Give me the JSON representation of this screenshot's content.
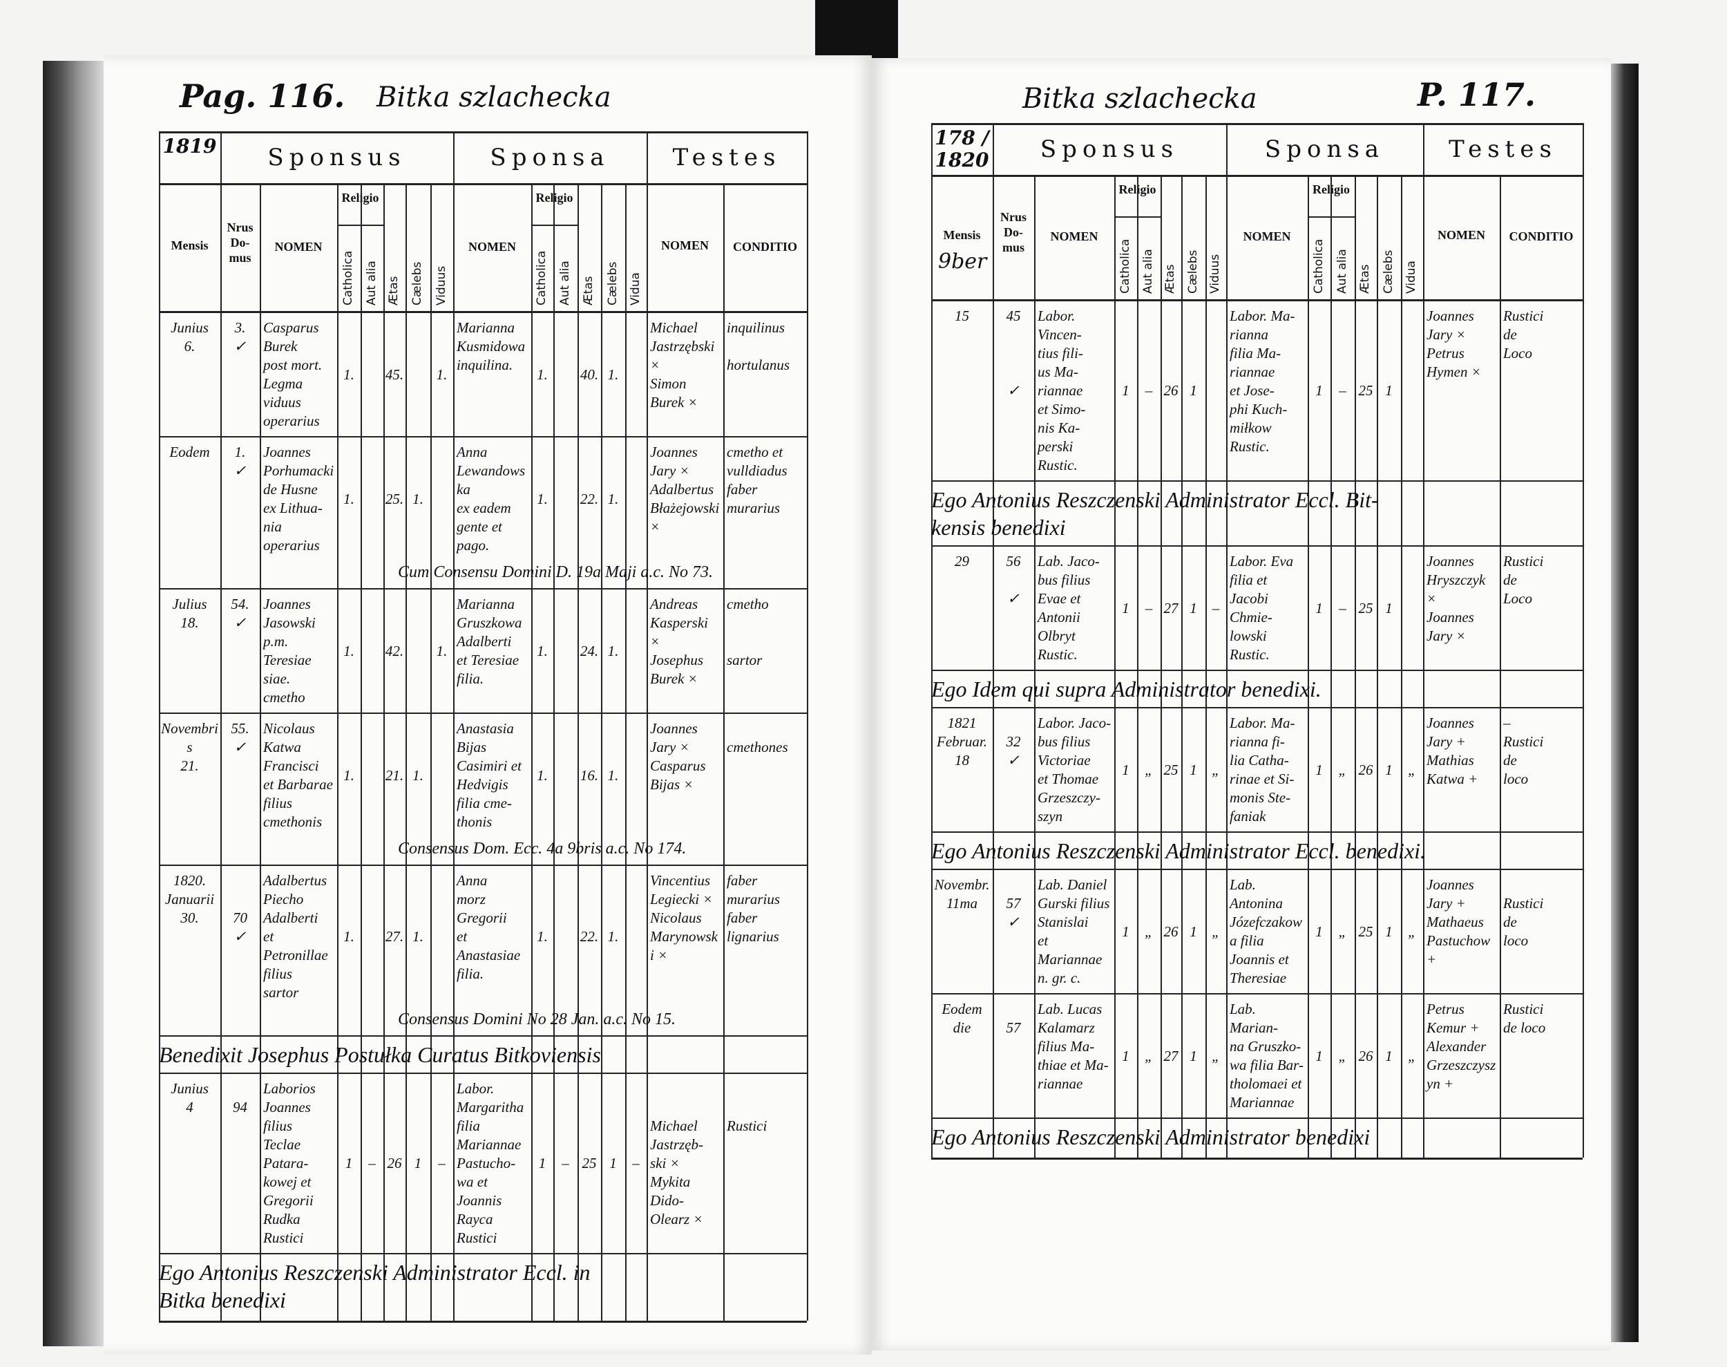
{
  "pages": [
    {
      "id": "left",
      "page_label": "Pag. 116.",
      "parish_title": "Bitka szlachecka",
      "year": "1819",
      "headers": {
        "year_cell": "1819",
        "sponsus": "Sponsus",
        "sponsa": "Sponsa",
        "testes": "Testes",
        "mensis": "Mensis",
        "nrus_domus": "Nrus\nDo-\nmus",
        "nomen": "NOMEN",
        "religio": "Religio",
        "catholica": "Catholica",
        "aut_alia": "Aut alia",
        "aetas": "Ætas",
        "caelebs": "Cælebs",
        "viduus": "Viduus",
        "vidua": "Vidua",
        "conditio": "CONDITIO",
        "mensis_value": ""
      },
      "items": [
        {
          "type": "entry",
          "mensis": "Junius\n6.",
          "domus": "3.\n✓",
          "sponsus": {
            "nomen": "Casparus\nBurek\npost mort.\nLegma\nviduus operarius",
            "cols": [
              "1.",
              "",
              "45.",
              "",
              "1."
            ]
          },
          "sponsa": {
            "nomen": "Marianna\nKusmidowa\ninquilina.",
            "cols": [
              "1.",
              "",
              "40.",
              "1.",
              ""
            ]
          },
          "testes": "Michael\nJastrzębski ×\nSimon\nBurek ×",
          "conditio": "inquilinus\n\nhortulanus",
          "note": ""
        },
        {
          "type": "entry",
          "mensis": "Eodem",
          "domus": "1.\n✓",
          "sponsus": {
            "nomen": "Joannes\nPorhumacki\nde Husne\nex Lithua-\nnia\noperarius",
            "cols": [
              "1.",
              "",
              "25.",
              "1.",
              ""
            ]
          },
          "sponsa": {
            "nomen": "Anna\nLewandowska\nex eadem\ngente et\npago.",
            "cols": [
              "1.",
              "",
              "22.",
              "1.",
              ""
            ]
          },
          "testes": "Joannes\nJary ×\nAdalbertus\nBłażejowski ×",
          "conditio": "cmetho et\nvulldiadus\nfaber\nmurarius",
          "note": "Cum Consensu Domini D. 19a Maji a.c. No 73."
        },
        {
          "type": "entry",
          "mensis": "Julius\n18.",
          "domus": "54.\n✓",
          "sponsus": {
            "nomen": "Joannes\nJasowski\np.m. Teresiae\nsiae.\ncmetho",
            "cols": [
              "1.",
              "",
              "42.",
              "",
              "1."
            ]
          },
          "sponsa": {
            "nomen": "Marianna\nGruszkowa\nAdalberti\net Teresiae\nfilia.",
            "cols": [
              "1.",
              "",
              "24.",
              "1.",
              ""
            ]
          },
          "testes": "Andreas\nKasperski ×\nJosephus\nBurek ×",
          "conditio": "cmetho\n\n\nsartor",
          "note": ""
        },
        {
          "type": "entry",
          "mensis": "Novembris\n21.",
          "domus": "55.\n✓",
          "sponsus": {
            "nomen": "Nicolaus\nKatwa\nFrancisci\net Barbarae\nfilius\ncmethonis",
            "cols": [
              "1.",
              "",
              "21.",
              "1.",
              ""
            ]
          },
          "sponsa": {
            "nomen": "Anastasia\nBijas\nCasimiri et\nHedvigis\nfilia cme-\nthonis",
            "cols": [
              "1.",
              "",
              "16.",
              "1.",
              ""
            ]
          },
          "testes": "Joannes\nJary ×\nCasparus\nBijas ×",
          "conditio": "\ncmethones",
          "note": "Consensus Dom. Ecc. 4a 9bris a.c. No 174."
        },
        {
          "type": "entry",
          "mensis": "1820.\nJanuarii\n30.",
          "domus": "\n\n70\n✓",
          "sponsus": {
            "nomen": "Adalbertus\nPiecho\nAdalberti\net Petronillae\nfilius\nsartor",
            "cols": [
              "1.",
              "",
              "27.",
              "1.",
              ""
            ]
          },
          "sponsa": {
            "nomen": "Anna\nmorz\nGregorii\net Anastasiae\nfilia.",
            "cols": [
              "1.",
              "",
              "22.",
              "1.",
              ""
            ]
          },
          "testes": "Vincentius\nLegiecki ×\nNicolaus\nMarynowski ×",
          "conditio": "faber\nmurarius\nfaber\nlignarius",
          "note": "Consensus Domini No 28 Jan. a.c. No 15."
        },
        {
          "type": "closing",
          "text": "Benedixit Josephus Postułka Curatus Bitkoviensis"
        },
        {
          "type": "entry",
          "mensis": "Junius\n4",
          "domus": "\n94",
          "sponsus": {
            "nomen": "Laborios\nJoannes\nfilius\nTeclae\nPatara-\nkowej et\nGregorii\nRudka\nRustici",
            "cols": [
              "1",
              "–",
              "26",
              "1",
              "–"
            ]
          },
          "sponsa": {
            "nomen": "Labor.\nMargaritha\nfilia\nMariannae\nPastucho-\nwa et\nJoannis\nRayca\nRustici",
            "cols": [
              "1",
              "–",
              "25",
              "1",
              "–"
            ]
          },
          "testes": "\n\nMichael\nJastrzęb-\nski ×\nMykita Dido-\nOlearz ×",
          "conditio": "\n\nRustici",
          "note": ""
        },
        {
          "type": "closing",
          "text": "Ego Antonius Reszczenski Administrator Eccl. in\nBitka benedixi"
        }
      ]
    },
    {
      "id": "right",
      "page_label": "P. 117.",
      "parish_title": "Bitka szlachecka",
      "year": "1820",
      "headers": {
        "year_cell": "178 / 1820",
        "sponsus": "Sponsus",
        "sponsa": "Sponsa",
        "testes": "Testes",
        "mensis": "Mensis",
        "nrus_domus": "Nrus\nDo-\nmus",
        "nomen": "NOMEN",
        "religio": "Religio",
        "catholica": "Catholica",
        "aut_alia": "Aut alia",
        "aetas": "Ætas",
        "caelebs": "Cælebs",
        "viduus": "Viduus",
        "vidua": "Vidua",
        "conditio": "CONDITIO",
        "mensis_value": "9ber"
      },
      "items": [
        {
          "type": "entry",
          "mensis": "15",
          "domus": "45\n\n\n\n✓",
          "sponsus": {
            "nomen": "Labor.\nVincen-\ntius fili-\nus Ma-\nriannae\net Simo-\nnis Ka-\nperski\nRustic.",
            "cols": [
              "1",
              "–",
              "26",
              "1",
              ""
            ]
          },
          "sponsa": {
            "nomen": "Labor. Ma-\nrianna\nfilia Ma-\nriannae\net Jose-\nphi Kuch-\nmiłkow\nRustic.",
            "cols": [
              "1",
              "–",
              "25",
              "1",
              ""
            ]
          },
          "testes": "Joannes\nJary ×\nPetrus\nHymen ×",
          "conditio": "Rustici\nde\nLoco",
          "note": ""
        },
        {
          "type": "closing",
          "text": "Ego Antonius Reszczenski Administrator Eccl. Bit-\nkensis benedixi"
        },
        {
          "type": "entry",
          "mensis": "29",
          "domus": "56\n\n✓",
          "sponsus": {
            "nomen": "Lab. Jaco-\nbus filius\nEvae et\nAntonii\nOlbryt\nRustic.",
            "cols": [
              "1",
              "–",
              "27",
              "1",
              "–"
            ]
          },
          "sponsa": {
            "nomen": "Labor. Eva\nfilia et\nJacobi\nChmie-\nlowski\nRustic.",
            "cols": [
              "1",
              "–",
              "25",
              "1",
              ""
            ]
          },
          "testes": "Joannes\nHryszczyk ×\nJoannes\nJary ×",
          "conditio": "Rustici\nde\nLoco",
          "note": ""
        },
        {
          "type": "closing",
          "text": "Ego Idem qui supra Administrator benedixi."
        },
        {
          "type": "entry",
          "mensis": "1821\nFebruar.\n18",
          "domus": "\n32\n✓",
          "sponsus": {
            "nomen": "Labor. Jaco-\nbus filius\nVictoriae\net Thomae\nGrzeszczy-\nszyn",
            "cols": [
              "1",
              "„",
              "25",
              "1",
              "„"
            ]
          },
          "sponsa": {
            "nomen": "Labor. Ma-\nrianna fi-\nlia Catha-\nrinae et Si-\nmonis Ste-\nfaniak",
            "cols": [
              "1",
              "„",
              "26",
              "1",
              "„"
            ]
          },
          "testes": "Joannes\nJary +\nMathias\nKatwa +",
          "conditio": "–\nRustici\nde\nloco",
          "note": ""
        },
        {
          "type": "closing",
          "text": "Ego Antonius Reszczenski Administrator Eccl. benedixi."
        },
        {
          "type": "entry",
          "mensis": "Novembr.\n11ma",
          "domus": "\n57\n✓",
          "sponsus": {
            "nomen": "Lab. Daniel\nGurski filius\nStanislai\net Mariannae\nn. gr. c.",
            "cols": [
              "1",
              "„",
              "26",
              "1",
              "„"
            ]
          },
          "sponsa": {
            "nomen": "Lab. Antonina\nJózefczakowa filia\nJoannis et\nTheresiae",
            "cols": [
              "1",
              "„",
              "25",
              "1",
              "„"
            ]
          },
          "testes": "Joannes\nJary +\nMathaeus\nPastuchow +",
          "conditio": "\nRustici\nde\nloco",
          "note": ""
        },
        {
          "type": "entry",
          "mensis": "Eodem\ndie",
          "domus": "\n57",
          "sponsus": {
            "nomen": "Lab. Lucas\nKalamarz\nfilius Ma-\nthiae et Ma-\nriannae",
            "cols": [
              "1",
              "„",
              "27",
              "1",
              "„"
            ]
          },
          "sponsa": {
            "nomen": "Lab. Marian-\nna Gruszko-\nwa filia Bar-\ntholomaei et\nMariannae",
            "cols": [
              "1",
              "„",
              "26",
              "1",
              "„"
            ]
          },
          "testes": "Petrus\nKemur +\nAlexander\nGrzeszczyszyn +",
          "conditio": "Rustici\nde loco",
          "note": ""
        },
        {
          "type": "closing",
          "text": "Ego Antonius Reszczenski Administrator benedixi"
        }
      ]
    }
  ]
}
